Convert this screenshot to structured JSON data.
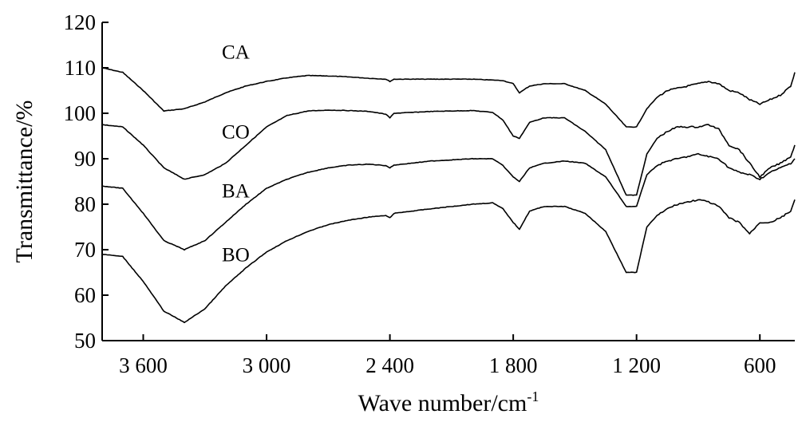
{
  "chart_data": {
    "type": "line",
    "xlabel": "Wave number/cm",
    "xlabel_superscript": "-1",
    "ylabel": "Transmittance/%",
    "xlim": [
      3800,
      430
    ],
    "ylim": [
      50,
      120
    ],
    "x_reversed": true,
    "grid": false,
    "x_ticks": [
      {
        "value": 3600,
        "label": "3 600"
      },
      {
        "value": 3000,
        "label": "3 000"
      },
      {
        "value": 2400,
        "label": "2 400"
      },
      {
        "value": 1800,
        "label": "1 800"
      },
      {
        "value": 1200,
        "label": "1 200"
      },
      {
        "value": 600,
        "label": "600"
      }
    ],
    "y_ticks": [
      {
        "value": 50,
        "label": "50"
      },
      {
        "value": 60,
        "label": "60"
      },
      {
        "value": 70,
        "label": "70"
      },
      {
        "value": 80,
        "label": "80"
      },
      {
        "value": 90,
        "label": "90"
      },
      {
        "value": 100,
        "label": "100"
      },
      {
        "value": 110,
        "label": "110"
      },
      {
        "value": 120,
        "label": "120"
      }
    ],
    "series": [
      {
        "name": "CA",
        "label_at": [
          3150,
          112
        ],
        "points": [
          [
            3800,
            110
          ],
          [
            3700,
            109
          ],
          [
            3600,
            105
          ],
          [
            3500,
            100.5
          ],
          [
            3400,
            101
          ],
          [
            3300,
            102.5
          ],
          [
            3200,
            104.5
          ],
          [
            3100,
            106
          ],
          [
            3000,
            107
          ],
          [
            2900,
            107.8
          ],
          [
            2800,
            108.3
          ],
          [
            2700,
            108.2
          ],
          [
            2600,
            108
          ],
          [
            2500,
            107.7
          ],
          [
            2420,
            107.5
          ],
          [
            2400,
            107
          ],
          [
            2380,
            107.5
          ],
          [
            2200,
            107.5
          ],
          [
            2000,
            107.5
          ],
          [
            1850,
            107.2
          ],
          [
            1800,
            106.5
          ],
          [
            1770,
            104.5
          ],
          [
            1720,
            106
          ],
          [
            1650,
            106.5
          ],
          [
            1550,
            106.5
          ],
          [
            1450,
            105
          ],
          [
            1350,
            102
          ],
          [
            1250,
            97
          ],
          [
            1200,
            97
          ],
          [
            1150,
            101
          ],
          [
            1100,
            103.5
          ],
          [
            1050,
            105
          ],
          [
            1000,
            105.5
          ],
          [
            950,
            106
          ],
          [
            900,
            106.5
          ],
          [
            850,
            107
          ],
          [
            800,
            106.5
          ],
          [
            750,
            105
          ],
          [
            700,
            104.5
          ],
          [
            650,
            103
          ],
          [
            600,
            102
          ],
          [
            550,
            103
          ],
          [
            500,
            104
          ],
          [
            450,
            106
          ],
          [
            430,
            109
          ]
        ]
      },
      {
        "name": "CO",
        "label_at": [
          3150,
          94.5
        ],
        "points": [
          [
            3800,
            97.5
          ],
          [
            3700,
            97
          ],
          [
            3600,
            93
          ],
          [
            3500,
            88
          ],
          [
            3400,
            85.5
          ],
          [
            3300,
            86.5
          ],
          [
            3200,
            89
          ],
          [
            3100,
            93
          ],
          [
            3000,
            97
          ],
          [
            2900,
            99.5
          ],
          [
            2800,
            100.5
          ],
          [
            2700,
            100.7
          ],
          [
            2600,
            100.6
          ],
          [
            2500,
            100.4
          ],
          [
            2420,
            99.8
          ],
          [
            2400,
            99
          ],
          [
            2380,
            100
          ],
          [
            2200,
            100.4
          ],
          [
            2000,
            100.6
          ],
          [
            1900,
            100.2
          ],
          [
            1850,
            98.5
          ],
          [
            1800,
            95
          ],
          [
            1770,
            94.5
          ],
          [
            1720,
            98
          ],
          [
            1650,
            99
          ],
          [
            1550,
            99
          ],
          [
            1450,
            96
          ],
          [
            1350,
            92
          ],
          [
            1250,
            82
          ],
          [
            1200,
            82
          ],
          [
            1150,
            91
          ],
          [
            1100,
            94.5
          ],
          [
            1050,
            96
          ],
          [
            1000,
            97
          ],
          [
            950,
            97
          ],
          [
            900,
            97
          ],
          [
            850,
            97.5
          ],
          [
            800,
            96.5
          ],
          [
            750,
            93
          ],
          [
            700,
            92
          ],
          [
            650,
            89
          ],
          [
            600,
            86
          ],
          [
            550,
            88
          ],
          [
            500,
            89
          ],
          [
            450,
            90.5
          ],
          [
            430,
            93
          ]
        ]
      },
      {
        "name": "BA",
        "label_at": [
          3150,
          81.5
        ],
        "points": [
          [
            3800,
            84
          ],
          [
            3700,
            83.5
          ],
          [
            3600,
            78
          ],
          [
            3500,
            72
          ],
          [
            3400,
            70
          ],
          [
            3300,
            72
          ],
          [
            3200,
            76
          ],
          [
            3100,
            80
          ],
          [
            3000,
            83.5
          ],
          [
            2900,
            85.5
          ],
          [
            2800,
            87
          ],
          [
            2700,
            88
          ],
          [
            2600,
            88.6
          ],
          [
            2500,
            88.8
          ],
          [
            2420,
            88.5
          ],
          [
            2400,
            88
          ],
          [
            2380,
            88.6
          ],
          [
            2200,
            89.5
          ],
          [
            2000,
            90
          ],
          [
            1900,
            90
          ],
          [
            1850,
            88.5
          ],
          [
            1800,
            86
          ],
          [
            1770,
            85
          ],
          [
            1720,
            88
          ],
          [
            1650,
            89
          ],
          [
            1550,
            89.5
          ],
          [
            1450,
            89
          ],
          [
            1350,
            86
          ],
          [
            1250,
            79.5
          ],
          [
            1200,
            79.5
          ],
          [
            1150,
            86.5
          ],
          [
            1100,
            88.5
          ],
          [
            1050,
            89.5
          ],
          [
            1000,
            90
          ],
          [
            950,
            90.5
          ],
          [
            900,
            91
          ],
          [
            850,
            90.5
          ],
          [
            800,
            90
          ],
          [
            750,
            88
          ],
          [
            700,
            87
          ],
          [
            650,
            86.5
          ],
          [
            600,
            85.5
          ],
          [
            550,
            87
          ],
          [
            500,
            88
          ],
          [
            450,
            89
          ],
          [
            430,
            90
          ]
        ]
      },
      {
        "name": "BO",
        "label_at": [
          3150,
          67.5
        ],
        "points": [
          [
            3800,
            69
          ],
          [
            3700,
            68.5
          ],
          [
            3600,
            63
          ],
          [
            3500,
            56.5
          ],
          [
            3400,
            54
          ],
          [
            3300,
            57
          ],
          [
            3200,
            62
          ],
          [
            3100,
            66
          ],
          [
            3000,
            69.5
          ],
          [
            2900,
            72
          ],
          [
            2800,
            74
          ],
          [
            2700,
            75.5
          ],
          [
            2600,
            76.5
          ],
          [
            2500,
            77.2
          ],
          [
            2420,
            77.5
          ],
          [
            2400,
            77
          ],
          [
            2380,
            78
          ],
          [
            2200,
            79
          ],
          [
            2000,
            80
          ],
          [
            1900,
            80.3
          ],
          [
            1850,
            79
          ],
          [
            1800,
            76
          ],
          [
            1770,
            74.5
          ],
          [
            1720,
            78.5
          ],
          [
            1650,
            79.5
          ],
          [
            1550,
            79.5
          ],
          [
            1450,
            78
          ],
          [
            1350,
            74
          ],
          [
            1250,
            65
          ],
          [
            1200,
            65
          ],
          [
            1150,
            75
          ],
          [
            1100,
            77.5
          ],
          [
            1050,
            79
          ],
          [
            1000,
            80
          ],
          [
            950,
            80.5
          ],
          [
            900,
            81
          ],
          [
            850,
            80.5
          ],
          [
            800,
            79.5
          ],
          [
            750,
            77
          ],
          [
            700,
            76
          ],
          [
            650,
            73.5
          ],
          [
            600,
            76
          ],
          [
            550,
            76
          ],
          [
            500,
            77
          ],
          [
            450,
            78.5
          ],
          [
            430,
            81
          ]
        ]
      }
    ]
  }
}
